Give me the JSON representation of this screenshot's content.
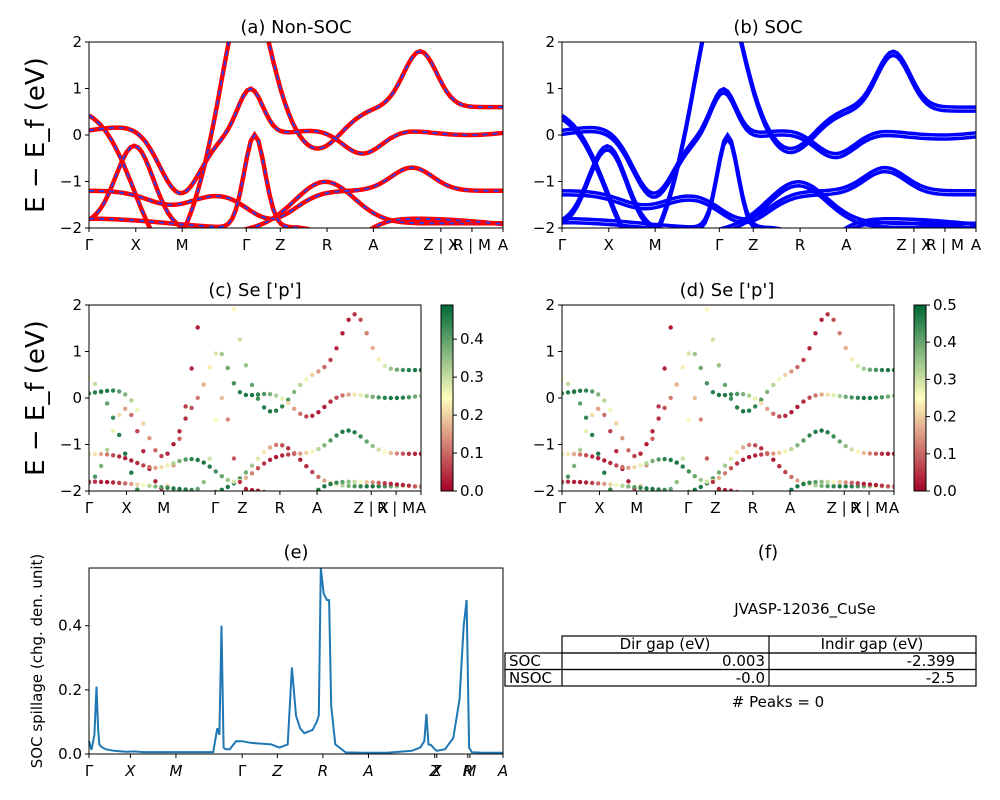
{
  "panel_titles": {
    "a": "(a) Non-SOC",
    "b": "(b) SOC",
    "c": "(c)  Se ['p']",
    "d": "(d) Se ['p']",
    "e": "(e)",
    "f": "(f)"
  },
  "band_ylabel": "E − E_f (eV)",
  "spillage_ylabel": "SOC spillage (chg. den. unit)",
  "colors": {
    "nonsoc_band": "#ff0000",
    "nonsoc_dash": "#1f3fff",
    "soc_band": "#0000ff",
    "spillage_line": "#1f77b4",
    "cmap_low": "#a50026",
    "cmap_mid": "#ffffbf",
    "cmap_high": "#006837"
  },
  "colorbars": {
    "c": {
      "ticks": [
        "0.0",
        "0.1",
        "0.2",
        "0.3",
        "0.4"
      ],
      "min": 0.0,
      "max": 0.49
    },
    "d": {
      "ticks": [
        "0.0",
        "0.1",
        "0.2",
        "0.3",
        "0.4",
        "0.5"
      ],
      "min": 0.0,
      "max": 0.5
    }
  },
  "table": {
    "compound": "JVASP-12036_CuSe",
    "headers": [
      "",
      "Dir gap (eV)",
      "Indir gap (eV)"
    ],
    "rows": [
      [
        "SOC",
        "0.003",
        "-2.399"
      ],
      [
        "NSOC",
        "-0.0",
        "-2.5"
      ]
    ],
    "peaks_text": "# Peaks = 0"
  },
  "chart_data": [
    {
      "id": "a",
      "type": "line",
      "title": "(a) Non-SOC",
      "ylabel": "E − E_f (eV)",
      "ylim": [
        -2,
        2
      ],
      "yticks": [
        "2",
        "1",
        "0",
        "−1",
        "−2"
      ],
      "xlim": [
        0,
        1
      ],
      "xtick_labels": [
        "Γ",
        "X",
        "M",
        "Γ",
        "Z",
        "R",
        "A",
        "Z | X",
        "R | M",
        "A"
      ],
      "xtick_positions": [
        0,
        0.113,
        0.225,
        0.38,
        0.462,
        0.575,
        0.687,
        0.85,
        0.925,
        1.0
      ],
      "style": "red solid with blue dashes"
    },
    {
      "id": "b",
      "type": "line",
      "title": "(b) SOC",
      "ylabel": "",
      "ylim": [
        -2,
        2
      ],
      "yticks": [
        "2",
        "1",
        "0",
        "−1",
        "−2"
      ],
      "xtick_labels": [
        "Γ",
        "X",
        "M",
        "Γ",
        "Z",
        "R",
        "A",
        "Z | X",
        "R | M",
        "A"
      ],
      "xtick_positions": [
        0,
        0.113,
        0.225,
        0.38,
        0.462,
        0.575,
        0.687,
        0.85,
        0.925,
        1.0
      ],
      "style": "blue solid, spin-split"
    },
    {
      "id": "c",
      "type": "scatter",
      "title": "(c)  Se ['p']",
      "ylabel": "E − E_f (eV)",
      "ylim": [
        -2,
        2
      ],
      "yticks": [
        "2",
        "1",
        "0",
        "−1",
        "−2"
      ],
      "xtick_labels": [
        "Γ",
        "X",
        "M",
        "Γ",
        "Z",
        "R",
        "A",
        "Z | X",
        "R | M",
        "A"
      ],
      "xtick_positions": [
        0,
        0.113,
        0.225,
        0.38,
        0.462,
        0.575,
        0.687,
        0.85,
        0.925,
        1.0
      ],
      "colorbar_range": [
        0.0,
        0.49
      ]
    },
    {
      "id": "d",
      "type": "scatter",
      "title": "(d) Se ['p']",
      "ylabel": "",
      "ylim": [
        -2,
        2
      ],
      "yticks": [
        "2",
        "1",
        "0",
        "−1",
        "−2"
      ],
      "xtick_labels": [
        "Γ",
        "X",
        "M",
        "Γ",
        "Z",
        "R",
        "A",
        "Z | X",
        "R | M",
        "A"
      ],
      "xtick_positions": [
        0,
        0.113,
        0.225,
        0.38,
        0.462,
        0.575,
        0.687,
        0.85,
        0.925,
        1.0
      ],
      "colorbar_range": [
        0.0,
        0.5
      ]
    },
    {
      "id": "e",
      "type": "line",
      "title": "(e)",
      "ylabel": "SOC spillage (chg. den. unit)",
      "ylim": [
        0,
        0.58
      ],
      "yticks": [
        "0.0",
        "0.2",
        "0.4"
      ],
      "ytick_values": [
        0.0,
        0.2,
        0.4
      ],
      "xtick_labels": [
        "Γ",
        "X",
        "M",
        "Γ",
        "Z",
        "R",
        "A",
        "Z",
        "X",
        "R",
        "M",
        "A"
      ],
      "xtick_positions": [
        0,
        0.1,
        0.21,
        0.37,
        0.455,
        0.565,
        0.675,
        0.835,
        0.84,
        0.915,
        0.92,
        1.0
      ],
      "x": [
        0,
        0.006,
        0.013,
        0.018,
        0.022,
        0.025,
        0.03,
        0.04,
        0.06,
        0.09,
        0.11,
        0.13,
        0.2,
        0.3,
        0.31,
        0.315,
        0.32,
        0.325,
        0.33,
        0.34,
        0.355,
        0.37,
        0.39,
        0.44,
        0.46,
        0.48,
        0.49,
        0.5,
        0.51,
        0.52,
        0.54,
        0.55,
        0.555,
        0.56,
        0.567,
        0.575,
        0.58,
        0.585,
        0.595,
        0.62,
        0.66,
        0.72,
        0.78,
        0.8,
        0.81,
        0.815,
        0.82,
        0.826,
        0.835,
        0.84,
        0.86,
        0.88,
        0.895,
        0.905,
        0.912,
        0.918,
        0.925,
        0.935,
        0.95,
        1.0
      ],
      "values": [
        0.04,
        0.013,
        0.06,
        0.21,
        0.08,
        0.03,
        0.022,
        0.015,
        0.01,
        0.007,
        0.008,
        0.006,
        0.006,
        0.006,
        0.08,
        0.06,
        0.4,
        0.02,
        0.015,
        0.015,
        0.04,
        0.04,
        0.035,
        0.03,
        0.02,
        0.03,
        0.27,
        0.12,
        0.08,
        0.065,
        0.075,
        0.1,
        0.12,
        0.58,
        0.5,
        0.48,
        0.48,
        0.15,
        0.03,
        0.005,
        0.004,
        0.004,
        0.01,
        0.02,
        0.04,
        0.125,
        0.03,
        0.028,
        0.015,
        0.01,
        0.015,
        0.05,
        0.17,
        0.4,
        0.48,
        0.02,
        0.005,
        0.005,
        0.004,
        0.004
      ]
    }
  ]
}
